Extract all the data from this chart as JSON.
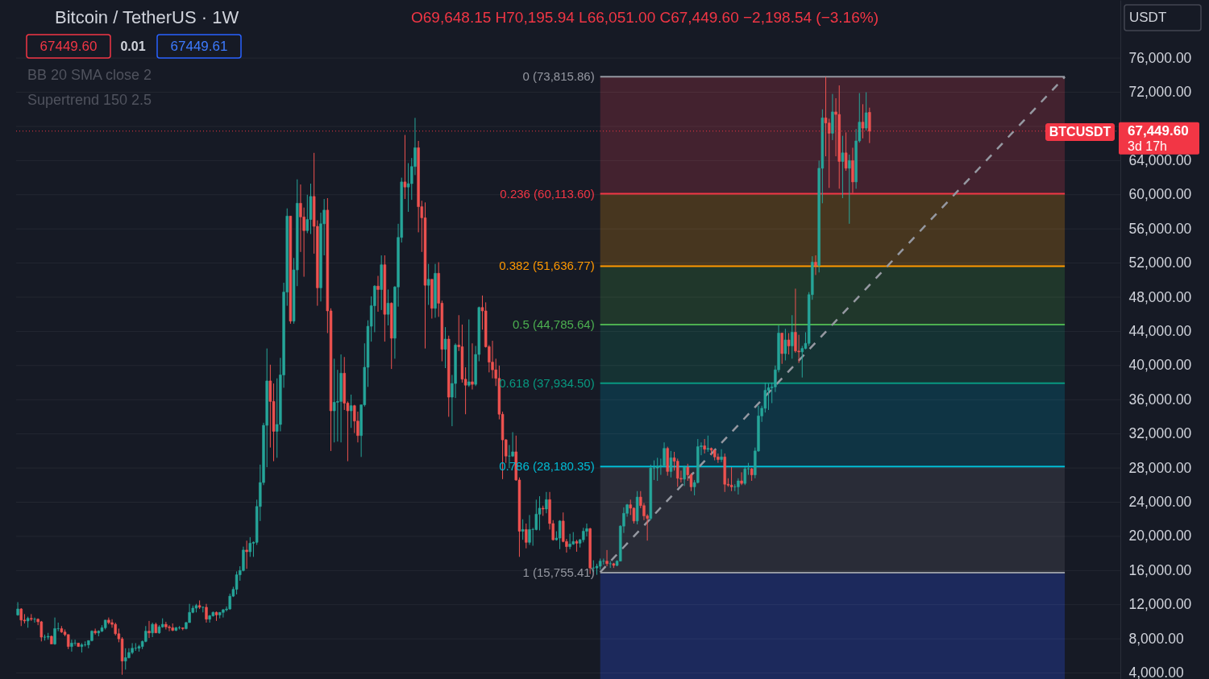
{
  "chart_data": {
    "type": "candlestick",
    "title": "Bitcoin / TetherUS · 1W",
    "categories": [
      null,
      null,
      null,
      null,
      null,
      null,
      null,
      null,
      null,
      null,
      null,
      null,
      null,
      null,
      null,
      null,
      null,
      null,
      null,
      null,
      null,
      null,
      null,
      null,
      null,
      null,
      null,
      null,
      null,
      null,
      null,
      null,
      null,
      null,
      null,
      null,
      null,
      null,
      null,
      null,
      null,
      null,
      null,
      null,
      null,
      null,
      null,
      null,
      null,
      null,
      null,
      null,
      null,
      null,
      null,
      null,
      null,
      null,
      null,
      null,
      null,
      null,
      null,
      null,
      null,
      null,
      null,
      null,
      null,
      null,
      null,
      null,
      null,
      null,
      null,
      null,
      null,
      null,
      null,
      null,
      null,
      null,
      null,
      null,
      null,
      null,
      null,
      null,
      null,
      null,
      null,
      null,
      null,
      null,
      null,
      null,
      null,
      null,
      null,
      null,
      null,
      null,
      null,
      null,
      null,
      null,
      null,
      null,
      null,
      null,
      null,
      null,
      null,
      null,
      null,
      null,
      null,
      null,
      null,
      null,
      null,
      null,
      null,
      null,
      null,
      null,
      null,
      null,
      null,
      null,
      null,
      null,
      null,
      null,
      null,
      null,
      null,
      null,
      null,
      null,
      null,
      null,
      null,
      null,
      null,
      null,
      null,
      null,
      null,
      null,
      null,
      null,
      null,
      null,
      null,
      null,
      null,
      null,
      null,
      null,
      null,
      null,
      null,
      null,
      null,
      null,
      null,
      null,
      null,
      null,
      null,
      null,
      null,
      null,
      null,
      null,
      null,
      null,
      null,
      null,
      null,
      null,
      null,
      null,
      null,
      null,
      null,
      null,
      null,
      null,
      null,
      null,
      null,
      null,
      null,
      null,
      null,
      null,
      null,
      null,
      null,
      null,
      null,
      null,
      null,
      null,
      null,
      null,
      null,
      null,
      null,
      null,
      null,
      null,
      null,
      null,
      null,
      null,
      null,
      null,
      null,
      null,
      null,
      null,
      null,
      null,
      null,
      null,
      null,
      null,
      null,
      null,
      null,
      null,
      null,
      null,
      null,
      null,
      null,
      null,
      null,
      null,
      null,
      null,
      null,
      null,
      null,
      null,
      null,
      null,
      null,
      null,
      null,
      null,
      null,
      null,
      null,
      null,
      null,
      null,
      null,
      null,
      null,
      null,
      null,
      null,
      null,
      null,
      null,
      null,
      null,
      null,
      null,
      null,
      null,
      null,
      null,
      null,
      null,
      null,
      null,
      null,
      null,
      null,
      null,
      null,
      null,
      null,
      null,
      null,
      null,
      null,
      null,
      null,
      null,
      null,
      null,
      null,
      null,
      null,
      null,
      null,
      null,
      null,
      null,
      null,
      null,
      null,
      null,
      null,
      null,
      null,
      null,
      null,
      null,
      null,
      null,
      null,
      null,
      null,
      null,
      null,
      null,
      null,
      null,
      null,
      null,
      null
    ],
    "ohlc": [
      [
        10800,
        12300,
        10700,
        11500
      ],
      [
        11500,
        11600,
        9500,
        10200
      ],
      [
        10200,
        10900,
        9800,
        10100
      ],
      [
        10100,
        10600,
        9300,
        10400
      ],
      [
        10400,
        10900,
        10100,
        10300
      ],
      [
        10300,
        10500,
        9900,
        10300
      ],
      [
        10300,
        10400,
        9600,
        10000
      ],
      [
        10000,
        10100,
        7700,
        8200
      ],
      [
        8200,
        8500,
        7800,
        8200
      ],
      [
        8200,
        8700,
        7900,
        8300
      ],
      [
        8300,
        8400,
        7400,
        7400
      ],
      [
        7400,
        10500,
        7300,
        9200
      ],
      [
        9200,
        9900,
        8900,
        9200
      ],
      [
        9200,
        9500,
        8700,
        8800
      ],
      [
        8800,
        9100,
        8300,
        8500
      ],
      [
        8500,
        8500,
        6800,
        7100
      ],
      [
        7100,
        7900,
        6500,
        7500
      ],
      [
        7500,
        7900,
        7200,
        7500
      ],
      [
        7500,
        7500,
        7100,
        7100
      ],
      [
        7100,
        7500,
        6400,
        7300
      ],
      [
        7300,
        7700,
        7100,
        7300
      ],
      [
        7300,
        7800,
        6900,
        7800
      ],
      [
        7800,
        9000,
        7700,
        8900
      ],
      [
        8900,
        9200,
        8500,
        8700
      ],
      [
        8700,
        9000,
        8300,
        8900
      ],
      [
        8900,
        9600,
        8800,
        9300
      ],
      [
        9300,
        10200,
        9100,
        10200
      ],
      [
        10200,
        10500,
        9700,
        9900
      ],
      [
        9900,
        10300,
        9300,
        9700
      ],
      [
        9700,
        9900,
        8400,
        8600
      ],
      [
        8600,
        9200,
        7600,
        8000
      ],
      [
        8000,
        8200,
        3800,
        5400
      ],
      [
        5400,
        6900,
        4400,
        5800
      ],
      [
        5800,
        6900,
        5700,
        6400
      ],
      [
        6400,
        7500,
        6200,
        6900
      ],
      [
        6900,
        7500,
        6600,
        6900
      ],
      [
        6900,
        7300,
        6500,
        7100
      ],
      [
        7100,
        7800,
        6800,
        7700
      ],
      [
        7700,
        9500,
        7600,
        8900
      ],
      [
        8900,
        10100,
        8100,
        8700
      ],
      [
        8700,
        9900,
        8200,
        9700
      ],
      [
        9700,
        9900,
        8700,
        8700
      ],
      [
        8700,
        9600,
        8600,
        9400
      ],
      [
        9400,
        10400,
        9300,
        9700
      ],
      [
        9700,
        10000,
        9100,
        9400
      ],
      [
        9400,
        9600,
        8900,
        9300
      ],
      [
        9300,
        9800,
        8900,
        9000
      ],
      [
        9000,
        9400,
        8900,
        9300
      ],
      [
        9300,
        9500,
        9100,
        9300
      ],
      [
        9300,
        9300,
        9000,
        9200
      ],
      [
        9200,
        10000,
        9100,
        9900
      ],
      [
        9900,
        12100,
        9900,
        11100
      ],
      [
        11100,
        11900,
        11000,
        11600
      ],
      [
        11600,
        12100,
        11100,
        11900
      ],
      [
        11900,
        12500,
        11500,
        11700
      ],
      [
        11700,
        11800,
        11100,
        11700
      ],
      [
        11700,
        12100,
        9900,
        10300
      ],
      [
        10300,
        10800,
        9900,
        10700
      ],
      [
        10700,
        11200,
        10600,
        11100
      ],
      [
        11100,
        11200,
        10100,
        10800
      ],
      [
        10800,
        11100,
        10400,
        11100
      ],
      [
        11100,
        11500,
        10500,
        11400
      ],
      [
        11400,
        11800,
        11200,
        11500
      ],
      [
        11500,
        13300,
        11400,
        13000
      ],
      [
        13000,
        14100,
        12900,
        13800
      ],
      [
        13800,
        15900,
        13200,
        15500
      ],
      [
        15500,
        16500,
        14800,
        16000
      ],
      [
        16000,
        18800,
        15900,
        18400
      ],
      [
        18400,
        19500,
        16200,
        18200
      ],
      [
        18200,
        19900,
        17600,
        19200
      ],
      [
        19200,
        19400,
        17600,
        19300
      ],
      [
        19300,
        24300,
        19000,
        23500
      ],
      [
        23500,
        28400,
        21800,
        26300
      ],
      [
        26300,
        33300,
        26000,
        33000
      ],
      [
        33000,
        42000,
        28100,
        38200
      ],
      [
        38200,
        40100,
        30400,
        35800
      ],
      [
        35800,
        37900,
        28800,
        32300
      ],
      [
        32300,
        38500,
        29200,
        33100
      ],
      [
        33100,
        40900,
        32300,
        38900
      ],
      [
        38900,
        49700,
        37400,
        48600
      ],
      [
        48600,
        58400,
        47000,
        57500
      ],
      [
        57500,
        57500,
        44900,
        45200
      ],
      [
        45200,
        52600,
        44900,
        51200
      ],
      [
        51200,
        61800,
        49300,
        59000
      ],
      [
        59000,
        61200,
        53300,
        57400
      ],
      [
        57400,
        58500,
        50400,
        55800
      ],
      [
        55800,
        60000,
        55500,
        57100
      ],
      [
        57100,
        61300,
        55400,
        59800
      ],
      [
        59800,
        64900,
        53100,
        56300
      ],
      [
        56300,
        57000,
        47000,
        49100
      ],
      [
        49100,
        57900,
        47500,
        56600
      ],
      [
        56600,
        59500,
        52900,
        58200
      ],
      [
        58200,
        59600,
        43800,
        46400
      ],
      [
        46400,
        46700,
        30000,
        34700
      ],
      [
        34700,
        40800,
        31000,
        35700
      ],
      [
        35700,
        39500,
        31100,
        35800
      ],
      [
        35800,
        41300,
        31000,
        39100
      ],
      [
        39100,
        41000,
        34800,
        35600
      ],
      [
        35600,
        35800,
        28800,
        34700
      ],
      [
        34700,
        36600,
        32700,
        35300
      ],
      [
        35300,
        35400,
        32100,
        33500
      ],
      [
        33500,
        34600,
        31000,
        31800
      ],
      [
        31800,
        35400,
        29300,
        35400
      ],
      [
        35400,
        42600,
        35200,
        39800
      ],
      [
        39800,
        45300,
        37500,
        44600
      ],
      [
        44600,
        48100,
        42800,
        47000
      ],
      [
        47000,
        49400,
        43900,
        49300
      ],
      [
        49300,
        50500,
        46300,
        48900
      ],
      [
        48900,
        52900,
        46500,
        51800
      ],
      [
        51800,
        52900,
        42800,
        46000
      ],
      [
        46000,
        48900,
        44700,
        47300
      ],
      [
        47300,
        47400,
        39600,
        43200
      ],
      [
        43200,
        49300,
        40800,
        49200
      ],
      [
        49200,
        56600,
        46900,
        55000
      ],
      [
        55000,
        62000,
        54400,
        61500
      ],
      [
        61500,
        67000,
        59500,
        60900
      ],
      [
        60900,
        63700,
        58000,
        61300
      ],
      [
        61300,
        64300,
        59400,
        63300
      ],
      [
        63300,
        69000,
        62300,
        65500
      ],
      [
        65500,
        66300,
        55600,
        58600
      ],
      [
        58600,
        59300,
        53300,
        57300
      ],
      [
        57300,
        59100,
        42000,
        49400
      ],
      [
        49400,
        51900,
        47100,
        50100
      ],
      [
        50100,
        50100,
        45500,
        46700
      ],
      [
        46700,
        51900,
        45600,
        50800
      ],
      [
        50800,
        52100,
        45700,
        47300
      ],
      [
        47300,
        47600,
        40500,
        41900
      ],
      [
        41900,
        44500,
        39700,
        43100
      ],
      [
        43100,
        43500,
        34000,
        36300
      ],
      [
        36300,
        38900,
        32900,
        37900
      ],
      [
        37900,
        42600,
        36200,
        42400
      ],
      [
        42400,
        45900,
        41700,
        42200
      ],
      [
        42200,
        44800,
        38000,
        38400
      ],
      [
        38400,
        39800,
        34300,
        37700
      ],
      [
        37700,
        45400,
        37500,
        38100
      ],
      [
        38100,
        42600,
        37200,
        37800
      ],
      [
        37800,
        42300,
        37600,
        41300
      ],
      [
        41300,
        46900,
        40500,
        46800
      ],
      [
        46800,
        48200,
        44200,
        46400
      ],
      [
        46400,
        47400,
        42100,
        42200
      ],
      [
        42200,
        42400,
        39200,
        40400
      ],
      [
        40400,
        42900,
        38500,
        39500
      ],
      [
        39500,
        40800,
        37600,
        38500
      ],
      [
        38500,
        40000,
        33700,
        34300
      ],
      [
        34300,
        34600,
        26700,
        31300
      ],
      [
        31300,
        31400,
        28600,
        29400
      ],
      [
        29400,
        30700,
        28000,
        29400
      ],
      [
        29400,
        32200,
        29300,
        29900
      ],
      [
        29900,
        31800,
        26500,
        26600
      ],
      [
        26600,
        26900,
        17600,
        20600
      ],
      [
        20600,
        22000,
        19600,
        20800
      ],
      [
        20800,
        21500,
        18600,
        19300
      ],
      [
        19300,
        22500,
        19000,
        20800
      ],
      [
        20800,
        21000,
        18900,
        20800
      ],
      [
        20800,
        24300,
        20700,
        22600
      ],
      [
        22600,
        24700,
        20700,
        23300
      ],
      [
        23300,
        23600,
        22400,
        23200
      ],
      [
        23200,
        25200,
        22700,
        24300
      ],
      [
        24300,
        25200,
        20800,
        21500
      ],
      [
        21500,
        21900,
        19500,
        19600
      ],
      [
        19600,
        20600,
        19500,
        19800
      ],
      [
        19800,
        21900,
        18500,
        21800
      ],
      [
        21800,
        22800,
        19300,
        19400
      ],
      [
        19400,
        19700,
        18100,
        18800
      ],
      [
        18800,
        20300,
        18500,
        19100
      ],
      [
        19100,
        20500,
        19000,
        19400
      ],
      [
        19400,
        19600,
        18200,
        19200
      ],
      [
        19200,
        19700,
        18700,
        19600
      ],
      [
        19600,
        21000,
        19300,
        20600
      ],
      [
        20600,
        21500,
        20000,
        20900
      ],
      [
        20900,
        21000,
        15600,
        16300
      ],
      [
        16300,
        17200,
        15800,
        16300
      ],
      [
        16300,
        16800,
        15500,
        16500
      ],
      [
        16500,
        17400,
        16100,
        17100
      ],
      [
        17100,
        17400,
        16700,
        17100
      ],
      [
        17100,
        18400,
        16500,
        16800
      ],
      [
        16800,
        17100,
        16300,
        16800
      ],
      [
        16800,
        16900,
        16300,
        16600
      ],
      [
        16600,
        17200,
        16500,
        17100
      ],
      [
        17100,
        21300,
        17100,
        21200
      ],
      [
        21200,
        23400,
        20400,
        22700
      ],
      [
        22700,
        23800,
        22300,
        23700
      ],
      [
        23700,
        24300,
        22500,
        23300
      ],
      [
        23300,
        23400,
        21500,
        21800
      ],
      [
        21800,
        25300,
        21400,
        24600
      ],
      [
        24600,
        25300,
        23300,
        23600
      ],
      [
        23600,
        23900,
        21900,
        22400
      ],
      [
        22400,
        22600,
        19500,
        22100
      ],
      [
        22100,
        28400,
        21900,
        28000
      ],
      [
        28000,
        28900,
        26600,
        28000
      ],
      [
        28000,
        29200,
        26500,
        28200
      ],
      [
        28200,
        29100,
        27200,
        28300
      ],
      [
        28300,
        31000,
        28200,
        30300
      ],
      [
        30300,
        30500,
        27100,
        27600
      ],
      [
        27600,
        30000,
        26900,
        29200
      ],
      [
        29200,
        29900,
        27700,
        28800
      ],
      [
        28800,
        29100,
        25800,
        26800
      ],
      [
        26800,
        27700,
        26300,
        26700
      ],
      [
        26700,
        28300,
        25900,
        28100
      ],
      [
        28100,
        28500,
        26500,
        27200
      ],
      [
        27200,
        27400,
        25300,
        25800
      ],
      [
        25800,
        26600,
        24800,
        26300
      ],
      [
        26300,
        31400,
        26200,
        30500
      ],
      [
        30500,
        31000,
        29500,
        30600
      ],
      [
        30600,
        31400,
        29700,
        30200
      ],
      [
        30200,
        31800,
        29900,
        30300
      ],
      [
        30300,
        30400,
        29500,
        30100
      ],
      [
        30100,
        30100,
        28900,
        29300
      ],
      [
        29300,
        29700,
        28600,
        29000
      ],
      [
        29000,
        30200,
        28700,
        29300
      ],
      [
        29300,
        29700,
        25200,
        26100
      ],
      [
        26100,
        26800,
        25800,
        26000
      ],
      [
        26000,
        28100,
        25300,
        25800
      ],
      [
        25800,
        26100,
        25300,
        25800
      ],
      [
        25800,
        26800,
        24900,
        26500
      ],
      [
        26500,
        27500,
        26000,
        26200
      ],
      [
        26200,
        28100,
        26000,
        27900
      ],
      [
        27900,
        28600,
        27200,
        27900
      ],
      [
        27900,
        28000,
        26500,
        27200
      ],
      [
        27200,
        30400,
        26800,
        30000
      ],
      [
        30000,
        35300,
        29900,
        34100
      ],
      [
        34100,
        35300,
        33400,
        35000
      ],
      [
        35000,
        38000,
        34500,
        37100
      ],
      [
        37100,
        37900,
        34800,
        37400
      ],
      [
        37400,
        38000,
        35600,
        37500
      ],
      [
        37500,
        40000,
        36900,
        39500
      ],
      [
        39500,
        44700,
        39200,
        43800
      ],
      [
        43800,
        43800,
        40200,
        41400
      ],
      [
        41400,
        44300,
        40600,
        43000
      ],
      [
        43000,
        43800,
        41300,
        42300
      ],
      [
        42300,
        45900,
        40800,
        43900
      ],
      [
        43900,
        49000,
        41500,
        41700
      ],
      [
        41700,
        43600,
        40300,
        41600
      ],
      [
        41600,
        42300,
        38600,
        42000
      ],
      [
        42000,
        43900,
        41900,
        42600
      ],
      [
        42600,
        48600,
        42300,
        48300
      ],
      [
        48300,
        52800,
        47700,
        52100
      ],
      [
        52100,
        52900,
        50600,
        51700
      ],
      [
        51700,
        64000,
        50900,
        63100
      ],
      [
        63100,
        70000,
        59000,
        69000
      ],
      [
        69000,
        73800,
        64500,
        68400
      ],
      [
        68400,
        68900,
        60800,
        67200
      ],
      [
        67200,
        71800,
        66400,
        69700
      ],
      [
        69700,
        71300,
        64500,
        69400
      ],
      [
        69400,
        72800,
        60700,
        63900
      ],
      [
        63900,
        66900,
        59600,
        64900
      ],
      [
        64900,
        67300,
        62800,
        63100
      ],
      [
        63100,
        64700,
        56600,
        64000
      ],
      [
        64000,
        65500,
        60200,
        61500
      ],
      [
        61500,
        67700,
        60700,
        66300
      ],
      [
        66300,
        71900,
        66100,
        68500
      ],
      [
        68500,
        70600,
        66600,
        67800
      ],
      [
        67800,
        72000,
        67500,
        69600
      ],
      [
        69648.15,
        70195.94,
        66051.0,
        67449.6
      ],
      null,
      null,
      null,
      null,
      null,
      null,
      null,
      null,
      null,
      null,
      null,
      null,
      null,
      null,
      null,
      null,
      null,
      null,
      null,
      null,
      null,
      null,
      null,
      null,
      null,
      null,
      null,
      null,
      null,
      null,
      null,
      null,
      null,
      null,
      null,
      null,
      null,
      null,
      null,
      null,
      null,
      null,
      null,
      null,
      null,
      null,
      null,
      null,
      null,
      null,
      null,
      null,
      null,
      null,
      null,
      null,
      null,
      null,
      null,
      null,
      null,
      null,
      null,
      null,
      null,
      null,
      null,
      null,
      null,
      null,
      null,
      null,
      null,
      null
    ],
    "colors": [
      "#26a69a",
      "#ef5350",
      "#ef5350",
      "#26a69a",
      "#ef5350",
      "#26a69a",
      "#ef5350",
      "#ef5350",
      "#26a69a",
      "#26a69a",
      "#ef5350",
      "#26a69a",
      "#26a69a",
      "#ef5350",
      "#ef5350",
      "#ef5350",
      "#26a69a",
      "#26a69a",
      "#ef5350",
      "#26a69a",
      "#26a69a",
      "#26a69a",
      "#26a69a",
      "#ef5350",
      "#26a69a",
      "#26a69a",
      "#26a69a",
      "#ef5350",
      "#ef5350",
      "#ef5350",
      "#ef5350",
      "#ef5350",
      "#26a69a",
      "#26a69a",
      "#26a69a",
      "#26a69a",
      "#26a69a",
      "#26a69a",
      "#26a69a",
      "#ef5350",
      "#26a69a",
      "#ef5350",
      "#26a69a",
      "#26a69a",
      "#ef5350",
      "#ef5350",
      "#ef5350",
      "#26a69a",
      "#26a69a",
      "#ef5350",
      "#26a69a",
      "#26a69a",
      "#26a69a",
      "#26a69a",
      "#ef5350",
      "#26a69a",
      "#ef5350",
      "#26a69a",
      "#26a69a",
      "#ef5350",
      "#26a69a",
      "#26a69a",
      "#26a69a",
      "#26a69a",
      "#26a69a",
      "#26a69a",
      "#26a69a",
      "#26a69a",
      "#ef5350",
      "#26a69a",
      "#26a69a",
      "#26a69a",
      "#26a69a",
      "#26a69a",
      "#26a69a",
      "#ef5350",
      "#ef5350",
      "#26a69a",
      "#26a69a",
      "#26a69a",
      "#26a69a",
      "#ef5350",
      "#26a69a",
      "#26a69a",
      "#ef5350",
      "#ef5350",
      "#26a69a",
      "#26a69a",
      "#ef5350",
      "#ef5350",
      "#26a69a",
      "#26a69a",
      "#ef5350",
      "#ef5350",
      "#26a69a",
      "#26a69a",
      "#26a69a",
      "#ef5350",
      "#ef5350",
      "#26a69a",
      "#ef5350",
      "#ef5350",
      "#26a69a",
      "#26a69a",
      "#26a69a",
      "#26a69a",
      "#26a69a",
      "#ef5350",
      "#26a69a",
      "#ef5350",
      "#26a69a",
      "#ef5350",
      "#26a69a",
      "#26a69a",
      "#26a69a",
      "#ef5350",
      "#26a69a",
      "#26a69a",
      "#26a69a",
      "#ef5350",
      "#ef5350",
      "#ef5350",
      "#26a69a",
      "#ef5350",
      "#26a69a",
      "#ef5350",
      "#ef5350",
      "#26a69a",
      "#ef5350",
      "#26a69a",
      "#26a69a",
      "#ef5350",
      "#ef5350",
      "#ef5350",
      "#26a69a",
      "#ef5350",
      "#26a69a",
      "#26a69a",
      "#ef5350",
      "#ef5350",
      "#ef5350",
      "#ef5350",
      "#ef5350",
      "#ef5350",
      "#ef5350",
      "#ef5350",
      "#26a69a",
      "#26a69a",
      "#ef5350",
      "#ef5350",
      "#26a69a",
      "#ef5350",
      "#26a69a",
      "#26a69a",
      "#26a69a",
      "#26a69a",
      "#ef5350",
      "#26a69a",
      "#ef5350",
      "#ef5350",
      "#26a69a",
      "#26a69a",
      "#ef5350",
      "#ef5350",
      "#26a69a",
      "#26a69a",
      "#ef5350",
      "#26a69a",
      "#26a69a",
      "#26a69a",
      "#ef5350",
      "#26a69a",
      "#26a69a",
      "#26a69a",
      "#26a69a",
      "#ef5350",
      "#26a69a",
      "#ef5350",
      "#26a69a",
      "#26a69a",
      "#26a69a",
      "#26a69a",
      "#ef5350",
      "#ef5350",
      "#26a69a",
      "#ef5350",
      "#ef5350",
      "#ef5350",
      "#26a69a",
      "#26a69a",
      "#26a69a",
      "#26a69a",
      "#26a69a",
      "#ef5350",
      "#26a69a",
      "#ef5350",
      "#ef5350",
      "#ef5350",
      "#26a69a",
      "#ef5350",
      "#ef5350",
      "#26a69a",
      "#26a69a",
      "#26a69a",
      "#ef5350",
      "#26a69a",
      "#ef5350",
      "#ef5350",
      "#ef5350",
      "#26a69a",
      "#ef5350",
      "#ef5350",
      "#ef5350",
      "#26a69a",
      "#26a69a",
      "#ef5350",
      "#26a69a",
      "#26a69a",
      "#ef5350",
      "#26a69a",
      "#26a69a",
      "#26a69a",
      "#26a69a",
      "#26a69a",
      "#26a69a",
      "#26a69a",
      "#26a69a",
      "#ef5350",
      "#26a69a",
      "#ef5350",
      "#26a69a",
      "#ef5350",
      "#ef5350",
      "#26a69a",
      "#26a69a",
      "#26a69a",
      "#26a69a",
      "#ef5350",
      "#26a69a",
      "#26a69a",
      "#ef5350",
      "#ef5350",
      "#26a69a",
      "#ef5350",
      "#ef5350",
      "#26a69a",
      "#ef5350",
      "#26a69a",
      "#ef5350",
      "#26a69a",
      "#26a69a",
      "#ef5350",
      "#26a69a",
      "#ef5350",
      null,
      null,
      null,
      null,
      null,
      null,
      null,
      null,
      null,
      null,
      null,
      null,
      null,
      null,
      null,
      null,
      null,
      null,
      null,
      null,
      null,
      null,
      null,
      null,
      null,
      null,
      null,
      null,
      null,
      null,
      null,
      null,
      null,
      null,
      null,
      null,
      null,
      null,
      null,
      null,
      null,
      null,
      null,
      null,
      null,
      null,
      null,
      null,
      null,
      null,
      null,
      null,
      null,
      null,
      null,
      null,
      null,
      null,
      null,
      null,
      null,
      null,
      null,
      null,
      null,
      null,
      null,
      null,
      null,
      null,
      null,
      null,
      null,
      null
    ],
    "series": [
      {
        "type": "line",
        "color": "#9598a1",
        "line_style": "dashed",
        "values": [
          null,
          null,
          null,
          null,
          null,
          null,
          null,
          null,
          null,
          null,
          null,
          null,
          null,
          null,
          null,
          null,
          null,
          null,
          null,
          null,
          null,
          null,
          null,
          null,
          null,
          null,
          null,
          null,
          null,
          null,
          null,
          null,
          null,
          null,
          null,
          null,
          null,
          null,
          null,
          null,
          null,
          null,
          null,
          null,
          null,
          null,
          null,
          null,
          null,
          null,
          null,
          null,
          null,
          null,
          null,
          null,
          null,
          null,
          null,
          null,
          null,
          null,
          null,
          null,
          null,
          null,
          null,
          null,
          null,
          null,
          null,
          null,
          null,
          null,
          null,
          null,
          null,
          null,
          null,
          null,
          null,
          null,
          null,
          null,
          null,
          null,
          null,
          null,
          null,
          null,
          null,
          null,
          null,
          null,
          null,
          null,
          null,
          null,
          null,
          null,
          null,
          null,
          null,
          null,
          null,
          null,
          null,
          null,
          null,
          null,
          null,
          null,
          null,
          null,
          null,
          null,
          null,
          null,
          null,
          null,
          null,
          null,
          null,
          null,
          null,
          null,
          null,
          null,
          null,
          null,
          null,
          null,
          null,
          null,
          null,
          null,
          null,
          null,
          null,
          null,
          null,
          null,
          null,
          null,
          null,
          null,
          null,
          null,
          null,
          null,
          null,
          null,
          null,
          null,
          null,
          null,
          null,
          null,
          null,
          null,
          null,
          null,
          null,
          null,
          null,
          null,
          null,
          null,
          null,
          null,
          null,
          null,
          null,
          15800,
          null,
          null,
          null,
          null,
          null,
          null,
          null,
          null,
          null,
          null,
          null,
          null,
          null,
          null,
          null,
          null,
          null,
          null,
          null,
          null,
          null,
          null,
          null,
          null,
          null,
          null,
          null,
          null,
          null,
          null,
          null,
          null,
          null,
          null,
          null,
          null,
          null,
          null,
          null,
          null,
          null,
          null,
          null,
          null,
          null,
          null,
          null,
          null,
          null,
          null,
          null,
          null,
          null,
          null,
          null,
          null,
          null,
          null,
          null,
          null,
          null,
          null,
          null,
          null,
          null,
          null,
          null,
          null,
          null,
          null,
          null,
          null,
          null,
          null,
          null,
          null,
          null,
          null,
          null,
          null,
          null,
          null,
          null,
          null,
          null,
          null,
          null,
          null,
          null,
          null,
          null,
          null,
          null,
          null,
          null,
          null,
          null,
          null,
          null,
          null,
          null,
          null,
          null,
          null,
          null,
          null,
          null,
          null,
          null,
          null,
          null,
          null,
          null,
          null,
          null,
          null,
          null,
          null,
          null,
          null,
          null,
          null,
          null,
          null,
          null,
          null,
          null,
          null,
          null,
          null,
          null,
          null,
          null,
          null,
          null,
          null,
          null,
          73800,
          null,
          null,
          null,
          null,
          null,
          null,
          null,
          null,
          null,
          null,
          null,
          null,
          null,
          null,
          null,
          null
        ]
      }
    ],
    "ylim": [
      3300,
      82800
    ],
    "yticks": [
      {
        "value": 4000,
        "label": "4,000.00"
      },
      {
        "value": 8000,
        "label": "8,000.00"
      },
      {
        "value": 12000,
        "label": "12,000.00"
      },
      {
        "value": 16000,
        "label": "16,000.00"
      },
      {
        "value": 20000,
        "label": "20,000.00"
      },
      {
        "value": 24000,
        "label": "24,000.00"
      },
      {
        "value": 28000,
        "label": "28,000.00"
      },
      {
        "value": 32000,
        "label": "32,000.00"
      },
      {
        "value": 36000,
        "label": "36,000.00"
      },
      {
        "value": 40000,
        "label": "40,000.00"
      },
      {
        "value": 44000,
        "label": "44,000.00"
      },
      {
        "value": 48000,
        "label": "48,000.00"
      },
      {
        "value": 52000,
        "label": "52,000.00"
      },
      {
        "value": 56000,
        "label": "56,000.00"
      },
      {
        "value": 60000,
        "label": "60,000.00"
      },
      {
        "value": 64000,
        "label": "64,000.00"
      },
      {
        "value": 68000,
        "label": null
      },
      {
        "value": 72000,
        "label": "72,000.00"
      },
      {
        "value": 76000,
        "label": "76,000.00"
      }
    ],
    "tick_labels": "y",
    "grid": "y",
    "ref_lines": [
      {
        "axis": "y",
        "value": 73815.86,
        "label": "0 (73,815.86)",
        "color": "#9598a1"
      },
      {
        "axis": "y",
        "value": 60113.6,
        "label": "0.236 (60,113.60)",
        "color": "#f23645"
      },
      {
        "axis": "y",
        "value": 51636.77,
        "label": "0.382 (51,636.77)",
        "color": "#ff9800"
      },
      {
        "axis": "y",
        "value": 44785.64,
        "label": "0.5 (44,785.64)",
        "color": "#4caf50"
      },
      {
        "axis": "y",
        "value": 37934.5,
        "label": "0.618 (37,934.50)",
        "color": "#089981"
      },
      {
        "axis": "y",
        "value": 28180.35,
        "label": "0.786 (28,180.35)",
        "color": "#00bcd4"
      },
      {
        "axis": "y",
        "value": 15755.41,
        "label": "1 (15,755.41)",
        "color": "#9598a1"
      },
      {
        "axis": "y",
        "value": 67449.6,
        "label": "67,449.60",
        "color": "#f23645",
        "line_style": "dotted"
      }
    ],
    "bands": [
      {
        "axis": "y",
        "from": 60113.6,
        "to": 73815.86,
        "color": "#43222f"
      },
      {
        "axis": "y",
        "from": 51636.77,
        "to": 60113.6,
        "color": "#47361f"
      },
      {
        "axis": "y",
        "from": 44785.64,
        "to": 51636.77,
        "color": "#20372b"
      },
      {
        "axis": "y",
        "from": 37934.5,
        "to": 44785.64,
        "color": "#153233"
      },
      {
        "axis": "y",
        "from": 28180.35,
        "to": 37934.5,
        "color": "#0f3444"
      },
      {
        "axis": "y",
        "from": 15755.41,
        "to": 28180.35,
        "color": "#292c37"
      },
      {
        "axis": "y",
        "from": 3300,
        "to": 15755.41,
        "color": "#1c295c"
      }
    ],
    "annotations": [
      "O69,648.15 H70,195.94 L66,051.00 C67,449.60 −2,198.54 (−3.16%)",
      "67449.60",
      "0.01",
      "67449.61",
      "BB 20 SMA close 2",
      "Supertrend 150 2.5",
      "USDT",
      "BTCUSDT",
      "3d 17h"
    ]
  }
}
